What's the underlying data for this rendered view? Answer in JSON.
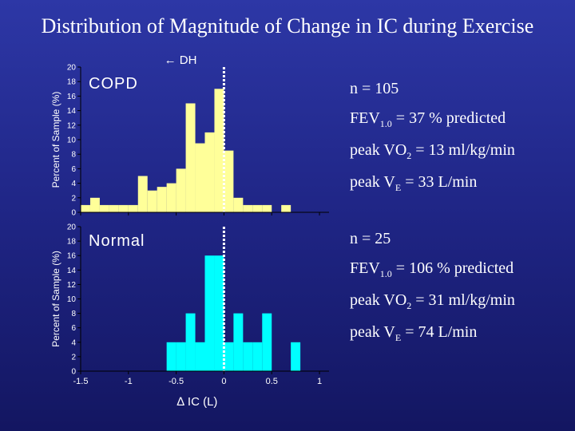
{
  "title": "Distribution of Magnitude of Change in IC during Exercise",
  "dh_label": "← DH",
  "x_axis_label": "∆ IC (L)",
  "colors": {
    "copd_bars": "#ffff99",
    "normal_bars": "#00ffff",
    "axis": "#000000",
    "background": "#1f2585"
  },
  "copd_stats": {
    "n": "n = 105",
    "fev_prefix": "FEV",
    "fev_sub": "1.0",
    "fev_suffix": " = 37 % predicted",
    "vo2_prefix": "peak VO",
    "vo2_sub": "2",
    "vo2_suffix": " = 13 ml/kg/min",
    "ve_prefix": "peak V",
    "ve_sub": "E",
    "ve_suffix": " = 33 L/min"
  },
  "normal_stats": {
    "n": "n = 25",
    "fev_prefix": "FEV",
    "fev_sub": "1.0",
    "fev_suffix": " = 106 % predicted",
    "vo2_prefix": "peak VO",
    "vo2_sub": "2",
    "vo2_suffix": " = 31 ml/kg/min",
    "ve_prefix": "peak V",
    "ve_sub": "E",
    "ve_suffix": " = 74 L/min"
  },
  "chart_data": [
    {
      "type": "bar",
      "panel_label": "COPD",
      "ylabel": "Percent of Sample (%)",
      "xlabel": "",
      "ylim": [
        0,
        20
      ],
      "yticks": [
        0,
        2,
        4,
        6,
        8,
        10,
        12,
        14,
        16,
        18,
        20
      ],
      "xlim": [
        -1.5,
        1.1
      ],
      "bin_width": 0.1,
      "x": [
        -1.5,
        -1.4,
        -1.3,
        -1.2,
        -1.1,
        -1.0,
        -0.9,
        -0.8,
        -0.7,
        -0.6,
        -0.5,
        -0.4,
        -0.3,
        -0.2,
        -0.1,
        0.0,
        0.1,
        0.2,
        0.3,
        0.4,
        0.5,
        0.6,
        0.7,
        0.8,
        0.9,
        1.0
      ],
      "values": [
        1,
        2,
        1,
        1,
        1,
        1,
        5,
        3,
        3.5,
        4,
        6,
        15,
        9.5,
        11,
        17,
        8.5,
        2,
        1,
        1,
        1,
        0,
        1,
        0,
        0,
        0,
        0
      ],
      "reference_line_x": 0.0,
      "grid": false
    },
    {
      "type": "bar",
      "panel_label": "Normal",
      "ylabel": "Percent of Sample (%)",
      "xlabel": "∆ IC (L)",
      "ylim": [
        0,
        20
      ],
      "yticks": [
        0,
        2,
        4,
        6,
        8,
        10,
        12,
        14,
        16,
        18,
        20
      ],
      "xlim": [
        -1.5,
        1.1
      ],
      "xticks": [
        -1.5,
        -1,
        -0.5,
        0,
        0.5,
        1
      ],
      "xticklabels": [
        "-1.5",
        "-1",
        "-0.5",
        "0",
        "0.5",
        "1"
      ],
      "bin_width": 0.1,
      "x": [
        -1.5,
        -1.4,
        -1.3,
        -1.2,
        -1.1,
        -1.0,
        -0.9,
        -0.8,
        -0.7,
        -0.6,
        -0.5,
        -0.4,
        -0.3,
        -0.2,
        -0.1,
        0.0,
        0.1,
        0.2,
        0.3,
        0.4,
        0.5,
        0.6,
        0.7,
        0.8,
        0.9,
        1.0
      ],
      "values": [
        0,
        0,
        0,
        0,
        0,
        0,
        0,
        0,
        0,
        4,
        4,
        8,
        4,
        16,
        16,
        4,
        8,
        4,
        4,
        8,
        0,
        0,
        4,
        0,
        0,
        0
      ],
      "reference_line_x": 0.0,
      "grid": false
    }
  ]
}
